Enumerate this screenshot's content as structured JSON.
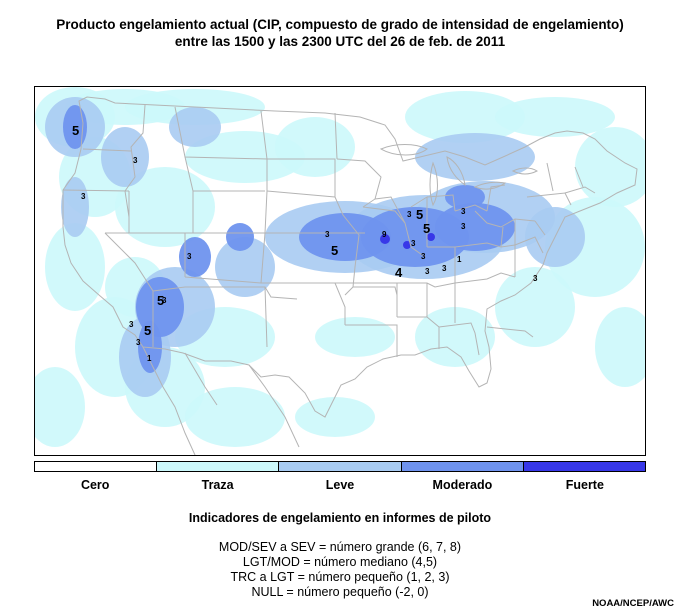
{
  "title": {
    "line1": "Producto engelamiento actual (CIP, compuesto de grado de intensidad de engelamiento)",
    "line2": "entre las 1500 y las 2300 UTC del 26 de feb. de 2011"
  },
  "colors": {
    "cero": "#ffffff",
    "traza": "#ccf8fb",
    "leve": "#a8cbf2",
    "moderado": "#6f93ee",
    "fuerte": "#3838e8",
    "boundary": "#b4b4b4"
  },
  "colorbar": {
    "labels": [
      "Cero",
      "Traza",
      "Leve",
      "Moderado",
      "Fuerte"
    ],
    "colors": [
      "#ffffff",
      "#ccf8fb",
      "#a8cbf2",
      "#6f93ee",
      "#3838e8"
    ]
  },
  "legend": {
    "heading": "Indicadores de engelamiento en informes de piloto",
    "lines": [
      "MOD/SEV a SEV = número grande (6, 7, 8)",
      "LGT/MOD = número mediano (4,5)",
      "TRC a LGT = número pequeño (1, 2, 3)",
      "NULL = número pequeño (-2, 0)"
    ]
  },
  "pireps": [
    {
      "value": "5",
      "size": "large"
    },
    {
      "value": "3",
      "size": "small"
    },
    {
      "value": "3",
      "size": "small"
    },
    {
      "value": "3",
      "size": "small"
    },
    {
      "value": "5",
      "size": "large"
    },
    {
      "value": "3",
      "size": "small"
    },
    {
      "value": "3",
      "size": "small"
    },
    {
      "value": "5",
      "size": "large"
    },
    {
      "value": "3",
      "size": "small"
    },
    {
      "value": "1",
      "size": "small"
    },
    {
      "value": "3",
      "size": "small"
    },
    {
      "value": "5",
      "size": "large"
    },
    {
      "value": "9",
      "size": "small"
    },
    {
      "value": "3",
      "size": "small"
    },
    {
      "value": "5",
      "size": "large"
    },
    {
      "value": "5",
      "size": "large"
    },
    {
      "value": "3",
      "size": "small"
    },
    {
      "value": "3",
      "size": "small"
    },
    {
      "value": "4",
      "size": "large"
    },
    {
      "value": "3",
      "size": "small"
    },
    {
      "value": "3",
      "size": "small"
    },
    {
      "value": "1",
      "size": "small"
    },
    {
      "value": "3",
      "size": "small"
    },
    {
      "value": "3",
      "size": "small"
    },
    {
      "value": "3",
      "size": "small"
    }
  ],
  "credit": "NOAA/NCEP/AWC"
}
